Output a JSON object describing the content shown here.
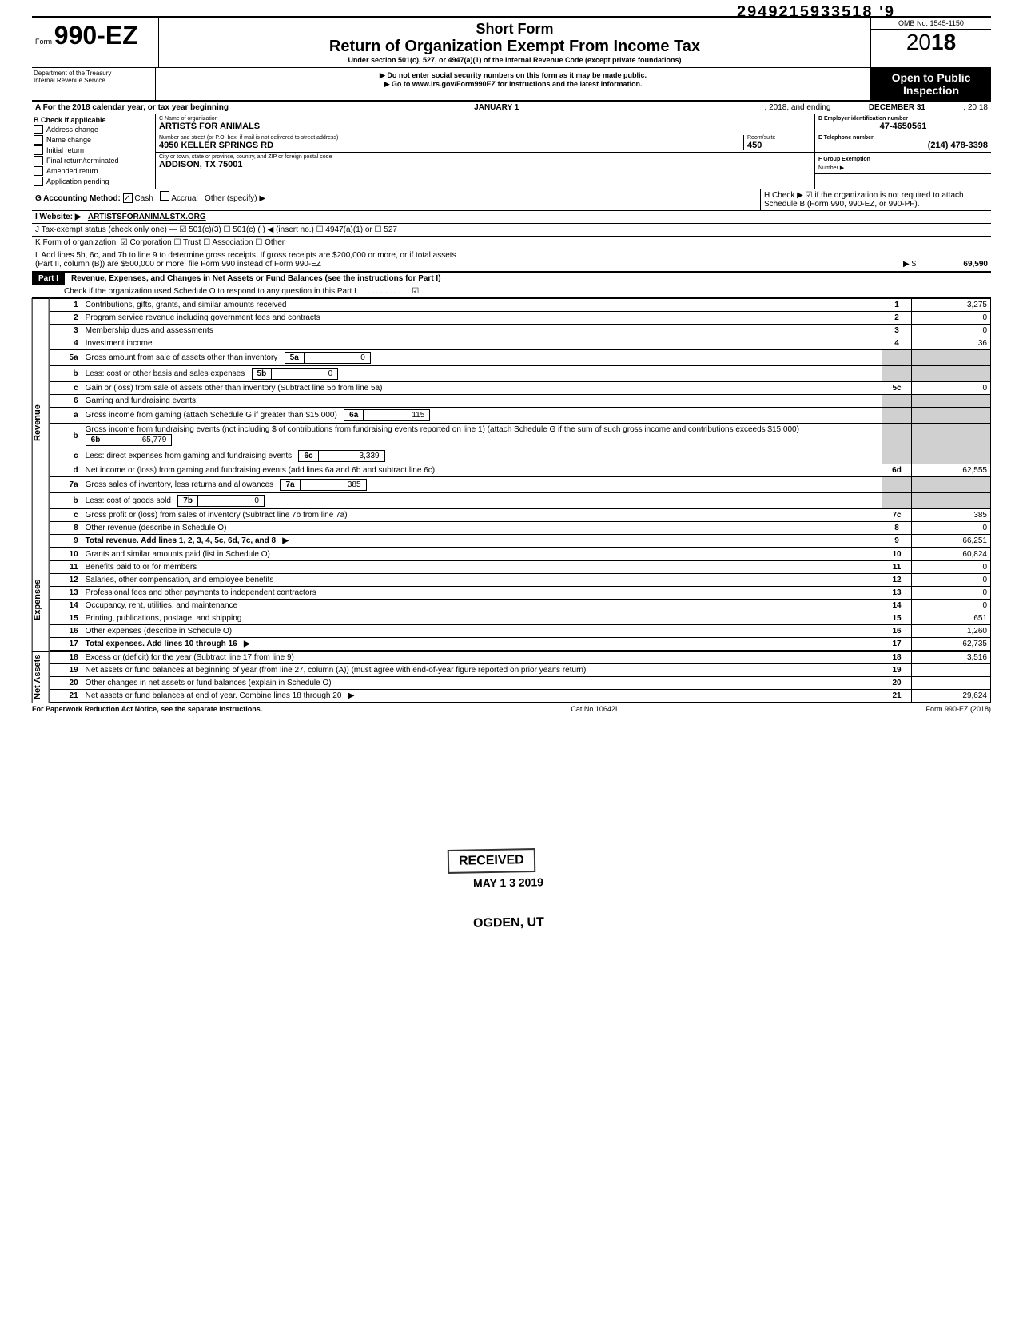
{
  "doc_number": "2949215933518 '9",
  "header": {
    "form_prefix": "Form",
    "form_number": "990-EZ",
    "short_form": "Short Form",
    "title": "Return of Organization Exempt From Income Tax",
    "subtitle": "Under section 501(c), 527, or 4947(a)(1) of the Internal Revenue Code (except private foundations)",
    "note1": "▶ Do not enter social security numbers on this form as it may be made public.",
    "note2": "▶ Go to www.irs.gov/Form990EZ for instructions and the latest information.",
    "omb": "OMB No. 1545-1150",
    "year_prefix": "20",
    "year_bold": "18",
    "open_public1": "Open to Public",
    "open_public2": "Inspection",
    "dept1": "Department of the Treasury",
    "dept2": "Internal Revenue Service"
  },
  "line_a": {
    "label": "A For the 2018 calendar year, or tax year beginning",
    "begin": "JANUARY 1",
    "mid": ", 2018, and ending",
    "end": "DECEMBER 31",
    "suffix": ", 20   18"
  },
  "col_b": {
    "label": "B Check if applicable",
    "items": [
      "Address change",
      "Name change",
      "Initial return",
      "Final return/terminated",
      "Amended return",
      "Application pending"
    ]
  },
  "col_c": {
    "name_label": "C Name of organization",
    "name": "ARTISTS FOR ANIMALS",
    "addr_label": "Number and street (or P.O. box, if mail is not delivered to street address)",
    "addr": "4950 KELLER SPRINGS RD",
    "room_label": "Room/suite",
    "room": "450",
    "city_label": "City or town, state or province, country, and ZIP or foreign postal code",
    "city": "ADDISON, TX 75001"
  },
  "col_de": {
    "d_label": "D Employer identification number",
    "d_value": "47-4650561",
    "e_label": "E Telephone number",
    "e_value": "(214) 478-3398",
    "f_label": "F Group Exemption",
    "f_label2": "Number ▶"
  },
  "line_g": {
    "label": "G Accounting Method:",
    "cash": "Cash",
    "accrual": "Accrual",
    "other": "Other (specify) ▶"
  },
  "line_h": {
    "text": "H Check ▶ ☑ if the organization is not required to attach Schedule B (Form 990, 990-EZ, or 990-PF)."
  },
  "line_i": {
    "label": "I  Website: ▶",
    "value": "ARTISTSFORANIMALSTX.ORG"
  },
  "line_j": "J Tax-exempt status (check only one) — ☑ 501(c)(3)   ☐ 501(c) (      ) ◀ (insert no.) ☐ 4947(a)(1) or   ☐ 527",
  "line_k": "K Form of organization:  ☑ Corporation    ☐ Trust    ☐ Association    ☐ Other",
  "line_l": {
    "text1": "L Add lines 5b, 6c, and 7b to line 9 to determine gross receipts. If gross receipts are $200,000 or more, or if total assets",
    "text2": "(Part II, column (B)) are $500,000 or more, file Form 990 instead of Form 990-EZ",
    "arrow": "▶  $",
    "value": "69,590"
  },
  "part1": {
    "label": "Part I",
    "title": "Revenue, Expenses, and Changes in Net Assets or Fund Balances (see the instructions for Part I)",
    "check_line": "Check if the organization used Schedule O to respond to any question in this Part I . . . . . . . . . . . . ☑"
  },
  "sections": {
    "revenue": "Revenue",
    "expenses": "Expenses",
    "netassets": "Net Assets"
  },
  "lines": [
    {
      "n": "1",
      "desc": "Contributions, gifts, grants, and similar amounts received",
      "box": "1",
      "val": "3,275"
    },
    {
      "n": "2",
      "desc": "Program service revenue including government fees and contracts",
      "box": "2",
      "val": "0"
    },
    {
      "n": "3",
      "desc": "Membership dues and assessments",
      "box": "3",
      "val": "0"
    },
    {
      "n": "4",
      "desc": "Investment income",
      "box": "4",
      "val": "36"
    },
    {
      "n": "5a",
      "desc": "Gross amount from sale of assets other than inventory",
      "innerbox": "5a",
      "innerval": "0"
    },
    {
      "n": "b",
      "desc": "Less: cost or other basis and sales expenses",
      "innerbox": "5b",
      "innerval": "0"
    },
    {
      "n": "c",
      "desc": "Gain or (loss) from sale of assets other than inventory (Subtract line 5b from line 5a)",
      "box": "5c",
      "val": "0"
    },
    {
      "n": "6",
      "desc": "Gaming and fundraising events:"
    },
    {
      "n": "a",
      "desc": "Gross income from gaming (attach Schedule G if greater than $15,000)",
      "innerbox": "6a",
      "innerval": "115"
    },
    {
      "n": "b",
      "desc": "Gross income from fundraising events (not including  $                 of contributions from fundraising events reported on line 1) (attach Schedule G if the sum of such gross income and contributions exceeds $15,000)",
      "innerbox": "6b",
      "innerval": "65,779"
    },
    {
      "n": "c",
      "desc": "Less: direct expenses from gaming and fundraising events",
      "innerbox": "6c",
      "innerval": "3,339"
    },
    {
      "n": "d",
      "desc": "Net income or (loss) from gaming and fundraising events (add lines 6a and 6b and subtract line 6c)",
      "box": "6d",
      "val": "62,555"
    },
    {
      "n": "7a",
      "desc": "Gross sales of inventory, less returns and allowances",
      "innerbox": "7a",
      "innerval": "385"
    },
    {
      "n": "b",
      "desc": "Less: cost of goods sold",
      "innerbox": "7b",
      "innerval": "0"
    },
    {
      "n": "c",
      "desc": "Gross profit or (loss) from sales of inventory (Subtract line 7b from line 7a)",
      "box": "7c",
      "val": "385"
    },
    {
      "n": "8",
      "desc": "Other revenue (describe in Schedule O)",
      "box": "8",
      "val": "0"
    },
    {
      "n": "9",
      "desc": "Total revenue. Add lines 1, 2, 3, 4, 5c, 6d, 7c, and 8",
      "box": "9",
      "val": "66,251",
      "bold": true,
      "arrow": true
    }
  ],
  "expense_lines": [
    {
      "n": "10",
      "desc": "Grants and similar amounts paid (list in Schedule O)",
      "box": "10",
      "val": "60,824"
    },
    {
      "n": "11",
      "desc": "Benefits paid to or for members",
      "box": "11",
      "val": "0"
    },
    {
      "n": "12",
      "desc": "Salaries, other compensation, and employee benefits",
      "box": "12",
      "val": "0"
    },
    {
      "n": "13",
      "desc": "Professional fees and other payments to independent contractors",
      "box": "13",
      "val": "0"
    },
    {
      "n": "14",
      "desc": "Occupancy, rent, utilities, and maintenance",
      "box": "14",
      "val": "0"
    },
    {
      "n": "15",
      "desc": "Printing, publications, postage, and shipping",
      "box": "15",
      "val": "651"
    },
    {
      "n": "16",
      "desc": "Other expenses (describe in Schedule O)",
      "box": "16",
      "val": "1,260"
    },
    {
      "n": "17",
      "desc": "Total expenses. Add lines 10 through 16",
      "box": "17",
      "val": "62,735",
      "bold": true,
      "arrow": true
    }
  ],
  "netasset_lines": [
    {
      "n": "18",
      "desc": "Excess or (deficit) for the year (Subtract line 17 from line 9)",
      "box": "18",
      "val": "3,516"
    },
    {
      "n": "19",
      "desc": "Net assets or fund balances at beginning of year (from line 27, column (A)) (must agree with end-of-year figure reported on prior year's return)",
      "box": "19",
      "val": ""
    },
    {
      "n": "20",
      "desc": "Other changes in net assets or fund balances (explain in Schedule O)",
      "box": "20",
      "val": ""
    },
    {
      "n": "21",
      "desc": "Net assets or fund balances at end of year. Combine lines 18 through 20",
      "box": "21",
      "val": "29,624",
      "arrow": true
    }
  ],
  "footer": {
    "left": "For Paperwork Reduction Act Notice, see the separate instructions.",
    "mid": "Cat No 10642I",
    "right": "Form 990-EZ (2018)"
  },
  "stamps": {
    "received": "RECEIVED",
    "date": "MAY 1 3 2019",
    "ogden": "OGDEN, UT"
  }
}
